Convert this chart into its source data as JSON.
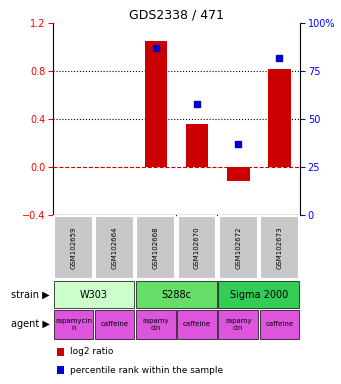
{
  "title": "GDS2338 / 471",
  "samples": [
    "GSM102659",
    "GSM102664",
    "GSM102668",
    "GSM102670",
    "GSM102672",
    "GSM102673"
  ],
  "log2_ratio": [
    0.0,
    0.0,
    1.05,
    0.36,
    -0.12,
    0.82
  ],
  "percentile_rank": [
    null,
    null,
    87,
    58,
    37,
    82
  ],
  "ylim_left": [
    -0.4,
    1.2
  ],
  "ylim_right": [
    0,
    100
  ],
  "bar_color": "#cc0000",
  "dot_color": "#0000cc",
  "dotted_lines": [
    0.8,
    0.4
  ],
  "strains": [
    {
      "label": "W303",
      "span": [
        0,
        2
      ],
      "color": "#ccffcc"
    },
    {
      "label": "S288c",
      "span": [
        2,
        4
      ],
      "color": "#66dd66"
    },
    {
      "label": "Sigma 2000",
      "span": [
        4,
        6
      ],
      "color": "#33cc66"
    }
  ],
  "agent_labels": [
    "rapamycin",
    "caffeine",
    "rapamycin",
    "caffeine",
    "rapamycin",
    "caffeine"
  ],
  "agent_color": "#dd55dd",
  "legend_items": [
    {
      "label": "log2 ratio",
      "color": "#cc0000"
    },
    {
      "label": "percentile rank within the sample",
      "color": "#0000cc"
    }
  ],
  "right_yticks": [
    0,
    25,
    50,
    75,
    100
  ],
  "right_yticklabels": [
    "0",
    "25",
    "50",
    "75",
    "100%"
  ],
  "left_yticks": [
    -0.4,
    0.0,
    0.4,
    0.8,
    1.2
  ],
  "sample_box_color": "#c8c8c8",
  "background_color": "#ffffff"
}
